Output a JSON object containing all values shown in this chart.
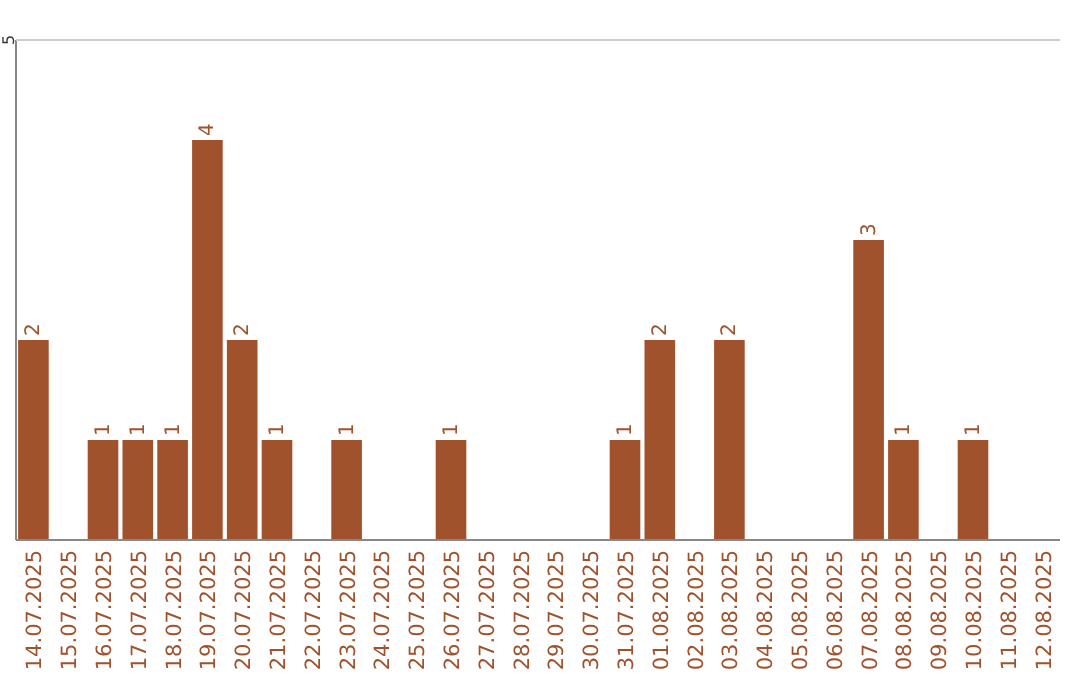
{
  "chart_data": {
    "type": "bar",
    "categories": [
      "14.07.2025",
      "15.07.2025",
      "16.07.2025",
      "17.07.2025",
      "18.07.2025",
      "19.07.2025",
      "20.07.2025",
      "21.07.2025",
      "22.07.2025",
      "23.07.2025",
      "24.07.2025",
      "25.07.2025",
      "26.07.2025",
      "27.07.2025",
      "28.07.2025",
      "29.07.2025",
      "30.07.2025",
      "31.07.2025",
      "01.08.2025",
      "02.08.2025",
      "03.08.2025",
      "04.08.2025",
      "05.08.2025",
      "06.08.2025",
      "07.08.2025",
      "08.08.2025",
      "09.08.2025",
      "10.08.2025",
      "11.08.2025",
      "12.08.2025"
    ],
    "values": [
      2,
      0,
      1,
      1,
      1,
      4,
      2,
      1,
      0,
      1,
      0,
      0,
      1,
      0,
      0,
      0,
      0,
      1,
      2,
      0,
      2,
      0,
      0,
      0,
      3,
      1,
      0,
      1,
      0,
      0
    ],
    "value_labels": [
      "2",
      null,
      "1",
      "1",
      "1",
      "4",
      "2",
      "1",
      null,
      "1",
      null,
      null,
      "1",
      null,
      null,
      null,
      null,
      "1",
      "2",
      null,
      "2",
      null,
      null,
      null,
      "3",
      "1",
      null,
      "1",
      null,
      null
    ],
    "color": "#a0522d",
    "ylim": [
      0,
      5
    ],
    "yticks": [
      5
    ]
  }
}
